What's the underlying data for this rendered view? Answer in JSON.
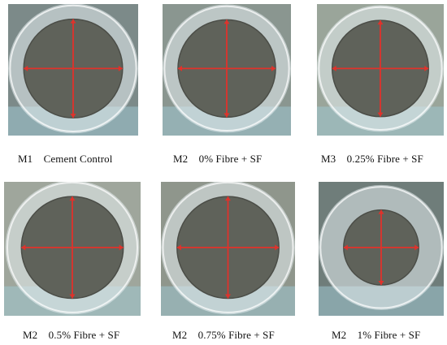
{
  "figure": {
    "panels": [
      {
        "id": "m1-cement-control",
        "caption": "M1    Cement Control",
        "pat_area": "large",
        "bg": "#7c8a89"
      },
      {
        "id": "m2-0-fibre-sf",
        "caption": "M2    0% Fibre + SF",
        "pat_area": "large",
        "bg": "#8a9690"
      },
      {
        "id": "m3-0-25-fibre-sf",
        "caption": "M3    0.25% Fibre + SF",
        "pat_area": "large",
        "bg": "#9aa59a"
      },
      {
        "id": "m2-0-5-fibre-sf",
        "caption": "M2    0.5% Fibre + SF",
        "pat_area": "large",
        "bg": "#9fa69c"
      },
      {
        "id": "m2-0-75-fibre-sf",
        "caption": "M2    0.75% Fibre + SF",
        "pat_area": "large",
        "bg": "#8f968c"
      },
      {
        "id": "m2-1-fibre-sf",
        "caption": "M2    1% Fibre + SF",
        "pat_area": "small",
        "bg": "#6f7d7a"
      }
    ],
    "colors": {
      "cement_paste": "#5f625a",
      "glass_plate": "#e6eef0",
      "measure_line": "#e0322b"
    }
  }
}
